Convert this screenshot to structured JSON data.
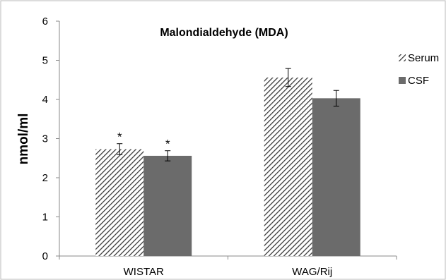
{
  "chart_data": {
    "type": "bar",
    "title": "Malondialdehyde (MDA)",
    "xlabel": "",
    "ylabel": "nmol/ml",
    "ylim": [
      0,
      6
    ],
    "yticks": [
      0,
      1,
      2,
      3,
      4,
      5,
      6
    ],
    "categories": [
      "WISTAR",
      "WAG/Rij"
    ],
    "series": [
      {
        "name": "Serum",
        "values": [
          2.73,
          4.56
        ],
        "errors": [
          0.14,
          0.23
        ],
        "significance": [
          "*",
          ""
        ],
        "color": "#444444",
        "pattern": "diagonal-hatch"
      },
      {
        "name": "CSF",
        "values": [
          2.56,
          4.03
        ],
        "errors": [
          0.13,
          0.2
        ],
        "significance": [
          "*",
          ""
        ],
        "color": "#6b6b6b",
        "pattern": "solid"
      }
    ],
    "grid": false,
    "legend_position": "right"
  }
}
